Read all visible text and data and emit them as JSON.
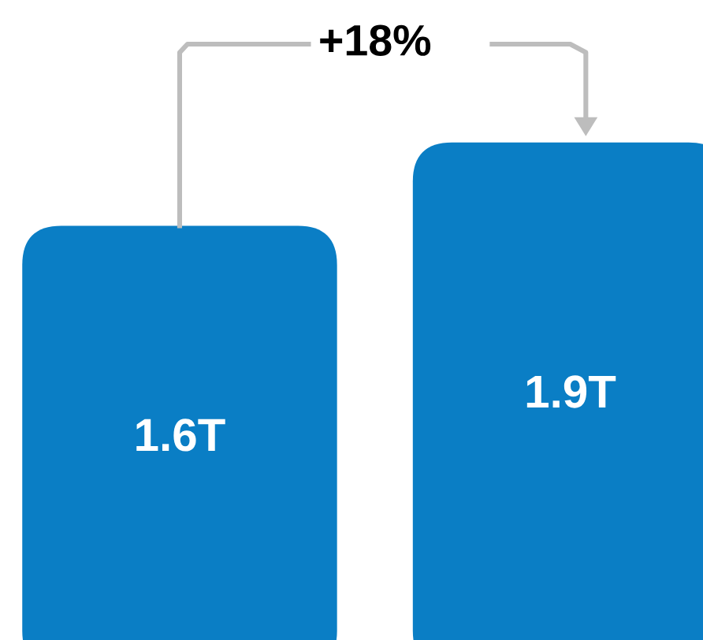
{
  "chart_data": {
    "type": "bar",
    "categories": [
      null,
      null
    ],
    "values": [
      1.6,
      1.9
    ],
    "value_labels": [
      "1.6T",
      "1.9T"
    ],
    "color": "#0a7ec5",
    "annotations": [
      "+18%"
    ]
  }
}
